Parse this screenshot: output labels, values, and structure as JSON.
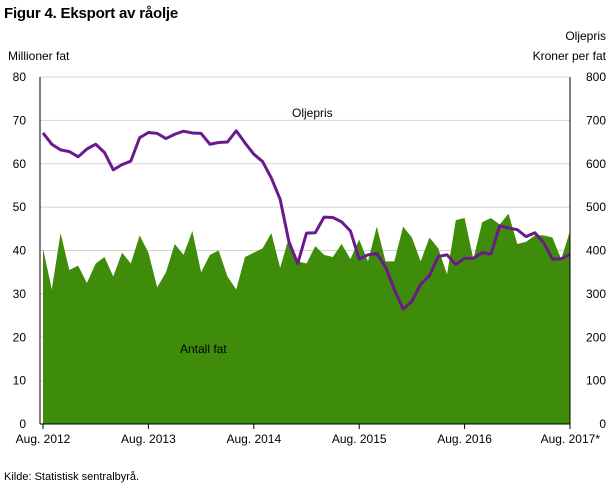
{
  "title": "Figur 4. Eksport av råolje",
  "source": "Kilde: Statistisk sentralbyrå.",
  "colors": {
    "volume_fill": "#3f8c0a",
    "price_line": "#6a1a8c",
    "grid": "#d4d4d4",
    "axis": "#000000"
  },
  "chart_data": {
    "type": "area",
    "ylabel_left": "Millioner  fat",
    "ylabel_right_line1": "Oljepris",
    "ylabel_right_line2": "Kroner per fat",
    "ylim_left": [
      0,
      80
    ],
    "ylim_right": [
      0,
      800
    ],
    "yticks_left": [
      "0",
      "10",
      "20",
      "30",
      "40",
      "50",
      "60",
      "70",
      "80"
    ],
    "yticks_right": [
      "0",
      "100",
      "200",
      "300",
      "400",
      "500",
      "600",
      "700",
      "800"
    ],
    "xticks": [
      "Aug. 2012",
      "Aug. 2013",
      "Aug. 2014",
      "Aug. 2015",
      "Aug. 2016",
      "Aug. 2017*"
    ],
    "grid": true,
    "annotations": {
      "price": "Oljepris",
      "volume": "Antall fat"
    },
    "series": [
      {
        "name": "Antall fat",
        "type": "area",
        "axis": "left",
        "values": [
          40.5,
          31,
          44,
          35.5,
          36.5,
          32.5,
          37,
          38.5,
          34,
          39.5,
          37,
          43.5,
          39.5,
          31.5,
          35,
          41.5,
          39,
          44.5,
          35,
          39,
          40,
          34,
          31,
          38.5,
          39.5,
          40.5,
          44,
          36,
          43,
          37.5,
          37,
          41,
          39,
          38.5,
          41.5,
          38,
          42.5,
          37.5,
          45.5,
          37.5,
          37.5,
          45.5,
          43,
          37.5,
          43,
          40.5,
          34.5,
          47,
          47.5,
          38,
          46.5,
          47.5,
          46,
          48.5,
          41.5,
          42,
          43.5,
          43.5,
          43,
          38,
          44.5
        ]
      },
      {
        "name": "Oljepris",
        "type": "line",
        "axis": "right",
        "values": [
          671,
          645,
          632,
          628,
          616,
          634,
          645,
          626,
          586,
          598,
          606,
          660,
          672,
          670,
          658,
          668,
          675,
          671,
          670,
          645,
          649,
          650,
          676,
          648,
          622,
          605,
          567,
          518,
          420,
          370,
          440,
          441,
          477,
          476,
          466,
          445,
          380,
          390,
          393,
          362,
          310,
          265,
          283,
          322,
          342,
          386,
          390,
          368,
          382,
          382,
          395,
          392,
          457,
          452,
          448,
          432,
          441,
          418,
          380,
          381,
          391
        ]
      }
    ]
  }
}
